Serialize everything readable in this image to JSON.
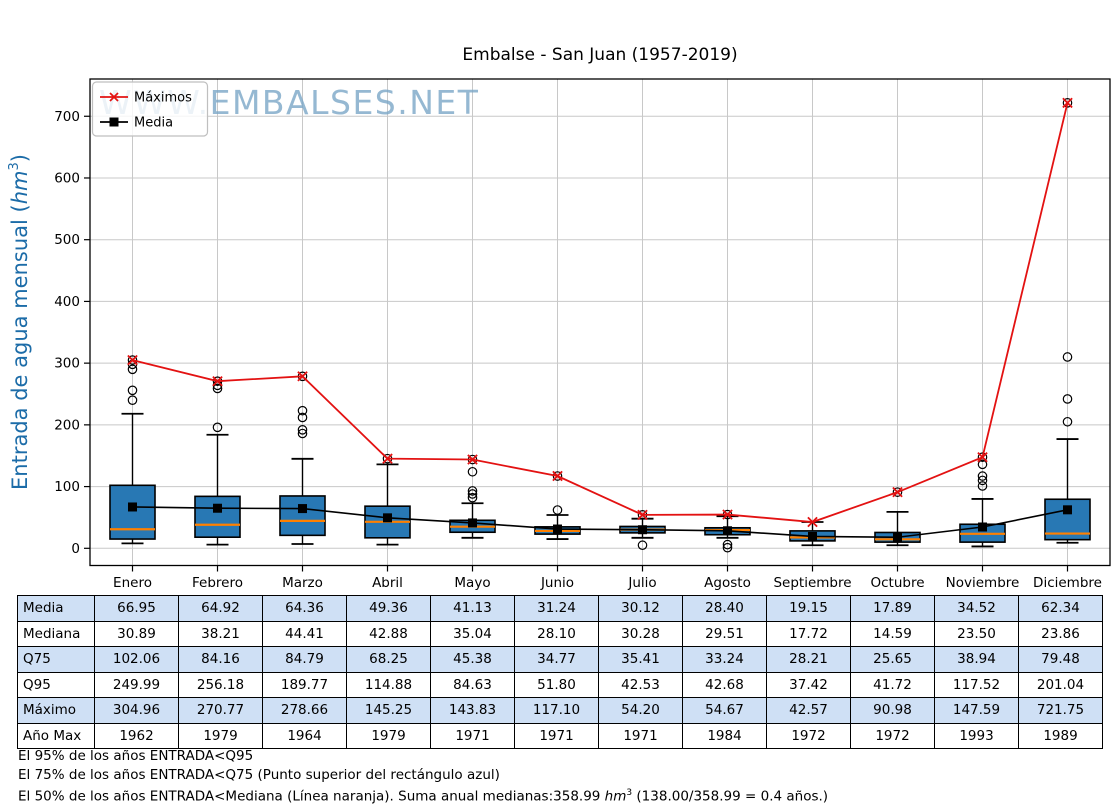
{
  "chart": {
    "title": "Embalse - San Juan (1957-2019)",
    "watermark": "WWW.EMBALSES.NET",
    "ylabel": {
      "prefix": "Entrada de agua mensual (",
      "italic": "hm",
      "sup": "3",
      "suffix": ")"
    },
    "legend": [
      {
        "label": "Máximos",
        "marker": "x-marker-icon",
        "color": "#e31212"
      },
      {
        "label": "Media",
        "marker": "square-marker-icon",
        "color": "#000000"
      }
    ],
    "colors": {
      "box_fill": "#2878b4",
      "box_edge": "#000000",
      "median_line": "#ff8000",
      "max_line": "#e31212",
      "media_line": "#000000",
      "grid": "#c8c8c8",
      "watermark": "#7ba7c7",
      "ylabel": "#1c6ca8",
      "table_shade": "#cfe0f5"
    }
  },
  "chart_data": {
    "type": "boxplot",
    "title": "Embalse - San Juan (1957-2019)",
    "xlabel": "",
    "ylabel": "Entrada de agua mensual (hm3)",
    "categories": [
      "Enero",
      "Febrero",
      "Marzo",
      "Abril",
      "Mayo",
      "Junio",
      "Julio",
      "Agosto",
      "Septiembre",
      "Octubre",
      "Noviembre",
      "Diciembre"
    ],
    "yticks": [
      0,
      100,
      200,
      300,
      400,
      500,
      600,
      700
    ],
    "ylim": [
      -28,
      762
    ],
    "grid": true,
    "legend_position": "upper-left",
    "series": [
      {
        "name": "Máximos",
        "marker": "x",
        "color": "#e31212",
        "values": [
          304.96,
          270.77,
          278.66,
          145.25,
          143.83,
          117.1,
          54.2,
          54.67,
          42.57,
          90.98,
          147.59,
          721.75
        ]
      },
      {
        "name": "Media",
        "marker": "square",
        "color": "#000000",
        "values": [
          66.95,
          64.92,
          64.36,
          49.36,
          41.13,
          31.24,
          30.12,
          28.4,
          19.15,
          17.89,
          34.52,
          62.34
        ]
      }
    ],
    "boxplot_stats": {
      "median": [
        30.89,
        38.21,
        44.41,
        42.88,
        35.04,
        28.1,
        30.28,
        29.51,
        17.72,
        14.59,
        23.5,
        23.86
      ],
      "q75": [
        102.06,
        84.16,
        84.79,
        68.25,
        45.38,
        34.77,
        35.41,
        33.24,
        28.21,
        25.65,
        38.94,
        79.48
      ],
      "q25_estimated": [
        15,
        18,
        21,
        17,
        26,
        23,
        25,
        22,
        12,
        10,
        10,
        14
      ],
      "whisker_low_estimated": [
        8,
        6,
        7,
        6,
        17,
        15,
        17,
        17,
        5,
        5,
        3,
        9
      ],
      "whisker_high_estimated": [
        218,
        184,
        145,
        136,
        73,
        54,
        48,
        52,
        42.57,
        59,
        80,
        177
      ],
      "outliers_estimated": [
        [
          240,
          256,
          290,
          298,
          304.96
        ],
        [
          196,
          259,
          264,
          270.77
        ],
        [
          186,
          192,
          212,
          223,
          278.66
        ],
        [
          145.25
        ],
        [
          82,
          88,
          93,
          124,
          143.83
        ],
        [
          62,
          117.1
        ],
        [
          5,
          54.2
        ],
        [
          1,
          6,
          54.67
        ],
        [],
        [
          90.98
        ],
        [
          101,
          110,
          117,
          136,
          147.59
        ],
        [
          205,
          242,
          310,
          721.75
        ]
      ]
    }
  },
  "table": {
    "columns": [
      "Enero",
      "Febrero",
      "Marzo",
      "Abril",
      "Mayo",
      "Junio",
      "Julio",
      "Agosto",
      "Septiembre",
      "Octubre",
      "Noviembre",
      "Diciembre"
    ],
    "rows": [
      {
        "label": "Media",
        "shaded": true,
        "values": [
          "66.95",
          "64.92",
          "64.36",
          "49.36",
          "41.13",
          "31.24",
          "30.12",
          "28.40",
          "19.15",
          "17.89",
          "34.52",
          "62.34"
        ]
      },
      {
        "label": "Mediana",
        "shaded": false,
        "values": [
          "30.89",
          "38.21",
          "44.41",
          "42.88",
          "35.04",
          "28.10",
          "30.28",
          "29.51",
          "17.72",
          "14.59",
          "23.50",
          "23.86"
        ]
      },
      {
        "label": "Q75",
        "shaded": true,
        "values": [
          "102.06",
          "84.16",
          "84.79",
          "68.25",
          "45.38",
          "34.77",
          "35.41",
          "33.24",
          "28.21",
          "25.65",
          "38.94",
          "79.48"
        ]
      },
      {
        "label": "Q95",
        "shaded": false,
        "values": [
          "249.99",
          "256.18",
          "189.77",
          "114.88",
          "84.63",
          "51.80",
          "42.53",
          "42.68",
          "37.42",
          "41.72",
          "117.52",
          "201.04"
        ]
      },
      {
        "label": "Máximo",
        "shaded": true,
        "values": [
          "304.96",
          "270.77",
          "278.66",
          "145.25",
          "143.83",
          "117.10",
          "54.20",
          "54.67",
          "42.57",
          "90.98",
          "147.59",
          "721.75"
        ]
      },
      {
        "label": "Año Max",
        "shaded": false,
        "values": [
          "1962",
          "1979",
          "1964",
          "1979",
          "1971",
          "1971",
          "1971",
          "1984",
          "1972",
          "1972",
          "1993",
          "1989"
        ]
      }
    ]
  },
  "footer": {
    "line1": "El 95% de los años ENTRADA<Q95",
    "line2": "El 75% de los años ENTRADA<Q75 (Punto superior del rectángulo azul)",
    "line3_prefix": "El 50% de los años ENTRADA<Mediana (Línea naranja). Suma anual medianas:358.99 ",
    "line3_italic": "hm",
    "line3_sup": "3",
    "line3_suffix": " (138.00/358.99 = 0.4 años.)"
  }
}
